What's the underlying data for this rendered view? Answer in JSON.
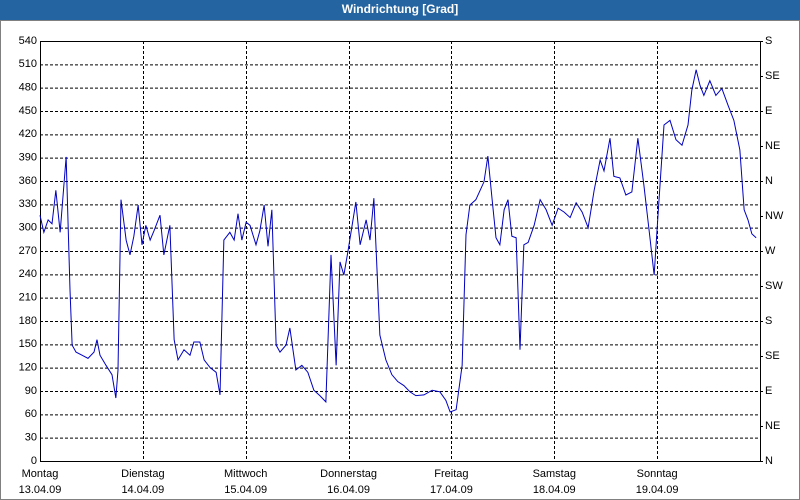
{
  "chart_data": {
    "type": "line",
    "title": "Windrichtung [Grad]",
    "x": [
      0,
      0.9,
      1.9,
      2.8,
      3.7,
      4.7,
      6.1,
      7,
      7.5,
      8.4,
      9.8,
      11.2,
      12.6,
      13.3,
      14,
      15.4,
      16.8,
      17.7,
      18.2,
      18.9,
      20.1,
      21,
      21.9,
      22.9,
      23.8,
      24.7,
      25.7,
      26.6,
      28,
      28.9,
      30.3,
      31.3,
      32.2,
      33.6,
      35,
      35.9,
      37.3,
      38.3,
      39.7,
      41.1,
      42,
      42.9,
      44.3,
      45.3,
      46.2,
      47.1,
      48.1,
      49,
      50.4,
      51.3,
      52.3,
      53.2,
      54.1,
      55.1,
      56,
      57.4,
      58.3,
      59.7,
      61.1,
      62.5,
      63.9,
      65.3,
      66.7,
      67.9,
      69.1,
      70,
      70.9,
      71.9,
      73.7,
      74.7,
      76.1,
      77,
      77.9,
      79.3,
      80.7,
      82.1,
      83.5,
      84.9,
      86.3,
      87.7,
      89.6,
      91.5,
      93.3,
      94.7,
      95.7,
      97.1,
      98.5,
      99.4,
      100.3,
      101.7,
      102.7,
      103.6,
      104.5,
      105.5,
      106.4,
      107.3,
      108.3,
      109.2,
      110.1,
      111.1,
      112,
      112.9,
      113.9,
      115.3,
      116.7,
      118.1,
      119.5,
      120.9,
      122.3,
      123.7,
      125.1,
      126.5,
      127.9,
      129.3,
      130.7,
      131.6,
      133,
      133.9,
      135.3,
      136.7,
      138.1,
      139.5,
      140.9,
      142.3,
      143.3,
      144.2,
      145.6,
      147,
      148.4,
      149.8,
      151.2,
      152.1,
      153.1,
      154,
      154.9,
      156.3,
      157.7,
      159.1,
      160.5,
      161.9,
      163.3,
      164.3,
      165.2,
      166.1,
      167.1
    ],
    "series": [
      {
        "color": "#0000c0",
        "values": [
          316,
          294,
          310,
          305,
          348,
          294,
          391,
          220,
          149,
          140,
          136,
          132,
          140,
          156,
          136,
          123,
          111,
          81,
          117,
          336,
          284,
          265,
          289,
          329,
          278,
          303,
          284,
          296,
          316,
          265,
          303,
          156,
          130,
          143,
          136,
          153,
          153,
          130,
          120,
          114,
          85,
          284,
          294,
          284,
          318,
          284,
          307,
          303,
          278,
          296,
          329,
          276,
          323,
          149,
          140,
          149,
          171,
          117,
          123,
          114,
          91,
          84,
          76,
          265,
          123,
          256,
          239,
          271,
          333,
          278,
          310,
          284,
          338,
          162,
          130,
          111,
          102,
          97,
          89,
          84,
          85,
          91,
          89,
          78,
          63,
          66,
          123,
          291,
          329,
          336,
          348,
          359,
          392,
          336,
          287,
          278,
          323,
          336,
          289,
          287,
          143,
          278,
          281,
          303,
          336,
          323,
          303,
          325,
          320,
          313,
          332,
          320,
          300,
          348,
          387,
          373,
          415,
          366,
          364,
          342,
          346,
          415,
          355,
          288,
          239,
          316,
          432,
          438,
          413,
          406,
          432,
          477,
          503,
          483,
          470,
          489,
          470,
          479,
          458,
          438,
          400,
          323,
          310,
          292,
          287
        ]
      }
    ],
    "xlim": [
      0,
      168
    ],
    "xticks": [
      {
        "value": 0,
        "label": [
          "Montag",
          "13.04.09"
        ]
      },
      {
        "value": 24,
        "label": [
          "Dienstag",
          "14.04.09"
        ]
      },
      {
        "value": 48,
        "label": [
          "Mittwoch",
          "15.04.09"
        ]
      },
      {
        "value": 72,
        "label": [
          "Donnerstag",
          "16.04.09"
        ]
      },
      {
        "value": 96,
        "label": [
          "Freitag",
          "17.04.09"
        ]
      },
      {
        "value": 120,
        "label": [
          "Samstag",
          "18.04.09"
        ]
      },
      {
        "value": 144,
        "label": [
          "Sonntag",
          "19.04.09"
        ]
      }
    ],
    "ylim": [
      0,
      540
    ],
    "yticks": [
      0,
      30,
      60,
      90,
      120,
      150,
      180,
      210,
      240,
      270,
      300,
      330,
      360,
      390,
      420,
      450,
      480,
      510,
      540
    ],
    "y2lim": [
      0,
      540
    ],
    "y2ticks": [
      {
        "value": 0,
        "label": "N"
      },
      {
        "value": 45,
        "label": "NE"
      },
      {
        "value": 90,
        "label": "E"
      },
      {
        "value": 135,
        "label": "SE"
      },
      {
        "value": 180,
        "label": "S"
      },
      {
        "value": 225,
        "label": "SW"
      },
      {
        "value": 270,
        "label": "W"
      },
      {
        "value": 315,
        "label": "NW"
      },
      {
        "value": 360,
        "label": "N"
      },
      {
        "value": 405,
        "label": "NE"
      },
      {
        "value": 450,
        "label": "E"
      },
      {
        "value": 495,
        "label": "SE"
      },
      {
        "value": 540,
        "label": "S"
      }
    ],
    "grid": true
  }
}
